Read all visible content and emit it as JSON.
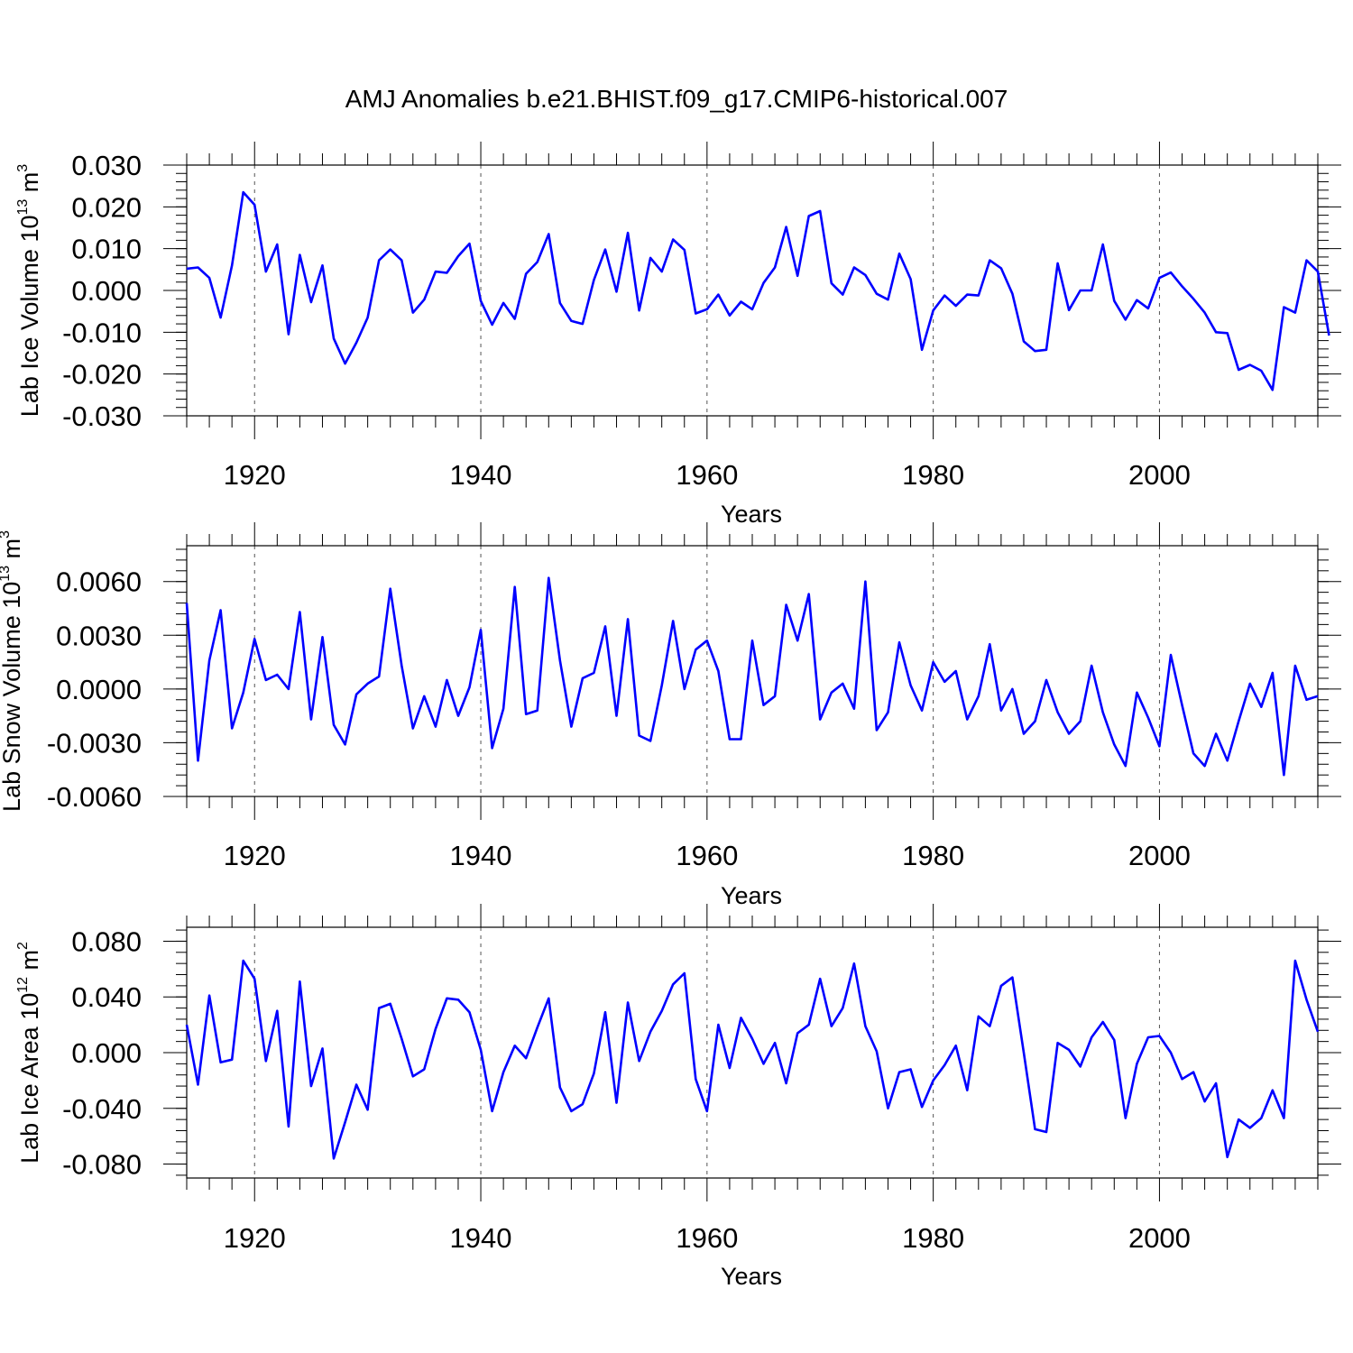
{
  "figure": {
    "title": "AMJ Anomalies b.e21.BHIST.f09_g17.CMIP6-historical.007",
    "line_color": "#0000ff"
  },
  "chart_data": [
    {
      "type": "line",
      "id": "ice-volume",
      "title": "",
      "xlabel": "Years",
      "ylabel": "Lab Ice Volume 10^13 m^3",
      "ylabel_parts": {
        "text": "Lab Ice Volume 10",
        "sup1": "13",
        "mid": " m",
        "sup2": "3"
      },
      "xlim": [
        1914,
        2014
      ],
      "ylim": [
        -0.03,
        0.03
      ],
      "x_ticks": [
        1920,
        1940,
        1960,
        1980,
        2000
      ],
      "x_tick_labels": [
        "1920",
        "1940",
        "1960",
        "1980",
        "2000"
      ],
      "y_ticks": [
        -0.03,
        -0.02,
        -0.01,
        0.0,
        0.01,
        0.02,
        0.03
      ],
      "y_tick_labels": [
        "-0.030",
        "-0.020",
        "-0.010",
        "0.000",
        "0.010",
        "0.020",
        "0.030"
      ],
      "y_minor_step": 0.002,
      "grid": "vertical dashed at major x ticks",
      "x_start": 1914,
      "values": [
        0.0052,
        0.0055,
        0.003,
        -0.0065,
        0.006,
        0.0235,
        0.0205,
        0.0045,
        0.011,
        -0.0105,
        0.0085,
        -0.0028,
        0.006,
        -0.0115,
        -0.0175,
        -0.0125,
        -0.0065,
        0.0072,
        0.0098,
        0.0072,
        -0.0053,
        -0.0022,
        0.0045,
        0.0042,
        0.0082,
        0.0112,
        -0.0025,
        -0.0082,
        -0.003,
        -0.0068,
        0.004,
        0.0068,
        0.0135,
        -0.003,
        -0.0073,
        -0.008,
        0.0025,
        0.0098,
        -0.0003,
        0.0138,
        -0.0048,
        0.0078,
        0.0045,
        0.0122,
        0.0097,
        -0.0055,
        -0.0045,
        -0.001,
        -0.006,
        -0.0027,
        -0.0045,
        0.0018,
        0.0055,
        0.0152,
        0.0035,
        0.0178,
        0.019,
        0.0017,
        -0.001,
        0.0055,
        0.0037,
        -0.0008,
        -0.0022,
        0.0088,
        0.0027,
        -0.0142,
        -0.0048,
        -0.0012,
        -0.0037,
        -0.001,
        -0.0012,
        0.0072,
        0.0053,
        -0.0008,
        -0.0122,
        -0.0145,
        -0.0142,
        0.0065,
        -0.0047,
        0.0,
        0.0,
        0.011,
        -0.0025,
        -0.007,
        -0.0023,
        -0.0043,
        0.003,
        0.0043,
        0.001,
        -0.002,
        -0.0053,
        -0.01,
        -0.0102,
        -0.019,
        -0.0178,
        -0.0192,
        -0.0238,
        -0.004,
        -0.0053,
        0.0072,
        0.0045,
        -0.0108
      ]
    },
    {
      "type": "line",
      "id": "snow-volume",
      "title": "",
      "xlabel": "Years",
      "ylabel": "Lab Snow Volume 10^13 m^3",
      "ylabel_parts": {
        "text": "Lab Snow Volume 10",
        "sup1": "13",
        "mid": " m",
        "sup2": "3"
      },
      "xlim": [
        1914,
        2014
      ],
      "ylim": [
        -0.006,
        0.008
      ],
      "x_ticks": [
        1920,
        1940,
        1960,
        1980,
        2000
      ],
      "x_tick_labels": [
        "1920",
        "1940",
        "1960",
        "1980",
        "2000"
      ],
      "y_ticks": [
        -0.006,
        -0.003,
        0.0,
        0.003,
        0.006
      ],
      "y_tick_labels": [
        "-0.0060",
        "-0.0030",
        "0.0000",
        "0.0030",
        "0.0060"
      ],
      "y_minor_step": 0.0006,
      "grid": "vertical dashed at major x ticks",
      "x_start": 1914,
      "values": [
        0.0048,
        -0.004,
        0.0016,
        0.0044,
        -0.0022,
        -0.0002,
        0.0028,
        0.0005,
        0.0008,
        0.0,
        0.0043,
        -0.0017,
        0.0029,
        -0.002,
        -0.0031,
        -0.0003,
        0.0003,
        0.0007,
        0.0056,
        0.0013,
        -0.0022,
        -0.0004,
        -0.0021,
        0.0005,
        -0.0015,
        0.0001,
        0.0033,
        -0.0033,
        -0.0011,
        0.0057,
        -0.0014,
        -0.0012,
        0.0062,
        0.0016,
        -0.0021,
        0.0006,
        0.0009,
        0.0035,
        -0.0015,
        0.0039,
        -0.0026,
        -0.0029,
        0.0002,
        0.0038,
        0.0,
        0.0022,
        0.0027,
        0.001,
        -0.0028,
        -0.0028,
        0.0027,
        -0.0009,
        -0.0004,
        0.0047,
        0.0027,
        0.0053,
        -0.0017,
        -0.0002,
        0.0003,
        -0.0011,
        0.006,
        -0.0023,
        -0.0013,
        0.0026,
        0.0002,
        -0.0012,
        0.0015,
        0.0004,
        0.001,
        -0.0017,
        -0.0004,
        0.0025,
        -0.0012,
        0.0,
        -0.0025,
        -0.0018,
        0.0005,
        -0.0013,
        -0.0025,
        -0.0018,
        0.0013,
        -0.0013,
        -0.0031,
        -0.0043,
        -0.0002,
        -0.0016,
        -0.0032,
        0.0019,
        -0.0009,
        -0.0036,
        -0.0043,
        -0.0025,
        -0.004,
        -0.0018,
        0.0003,
        -0.001,
        0.0009,
        -0.0048,
        0.0013,
        -0.0006,
        -0.0004
      ]
    },
    {
      "type": "line",
      "id": "ice-area",
      "title": "",
      "xlabel": "Years",
      "ylabel": "Lab Ice Area 10^12 m^2",
      "ylabel_parts": {
        "text": "Lab Ice Area 10",
        "sup1": "12",
        "mid": " m",
        "sup2": "2"
      },
      "xlim": [
        1914,
        2014
      ],
      "ylim": [
        -0.09,
        0.09
      ],
      "x_ticks": [
        1920,
        1940,
        1960,
        1980,
        2000
      ],
      "x_tick_labels": [
        "1920",
        "1940",
        "1960",
        "1980",
        "2000"
      ],
      "y_ticks": [
        -0.08,
        -0.04,
        0.0,
        0.04,
        0.08
      ],
      "y_tick_labels": [
        "-0.080",
        "-0.040",
        "0.000",
        "0.040",
        "0.080"
      ],
      "y_minor_step": 0.008,
      "grid": "vertical dashed at major x ticks",
      "x_start": 1914,
      "values": [
        0.02,
        -0.023,
        0.041,
        -0.007,
        -0.005,
        0.066,
        0.053,
        -0.006,
        0.03,
        -0.053,
        0.051,
        -0.024,
        0.003,
        -0.076,
        -0.05,
        -0.023,
        -0.041,
        0.032,
        0.035,
        0.01,
        -0.017,
        -0.012,
        0.017,
        0.039,
        0.038,
        0.029,
        0.002,
        -0.042,
        -0.014,
        0.005,
        -0.004,
        0.018,
        0.039,
        -0.025,
        -0.042,
        -0.037,
        -0.015,
        0.029,
        -0.036,
        0.036,
        -0.006,
        0.015,
        0.03,
        0.049,
        0.057,
        -0.019,
        -0.042,
        0.02,
        -0.011,
        0.025,
        0.01,
        -0.008,
        0.007,
        -0.022,
        0.014,
        0.02,
        0.053,
        0.019,
        0.032,
        0.064,
        0.019,
        0.001,
        -0.04,
        -0.014,
        -0.012,
        -0.039,
        -0.02,
        -0.009,
        0.005,
        -0.027,
        0.026,
        0.019,
        0.048,
        0.054,
        0.0,
        -0.055,
        -0.057,
        0.007,
        0.002,
        -0.01,
        0.011,
        0.022,
        0.009,
        -0.047,
        -0.008,
        0.011,
        0.012,
        0.0,
        -0.019,
        -0.014,
        -0.035,
        -0.022,
        -0.075,
        -0.048,
        -0.054,
        -0.047,
        -0.027,
        -0.047,
        0.066,
        0.038,
        0.015
      ]
    }
  ]
}
